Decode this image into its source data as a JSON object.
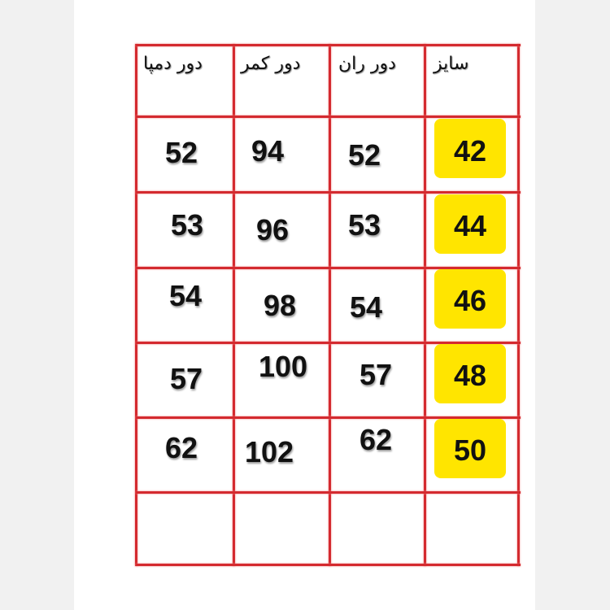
{
  "headers": {
    "size": "سایز",
    "thigh": "دور ران",
    "waist": "دور کمر",
    "hem": "دور دمپا"
  },
  "highlight_color": "#ffe500",
  "grid_color": "#d42a2f",
  "rows": [
    {
      "size": "42",
      "thigh": "52",
      "waist": "94",
      "hem": "52"
    },
    {
      "size": "44",
      "thigh": "53",
      "waist": "96",
      "hem": "53"
    },
    {
      "size": "46",
      "thigh": "54",
      "waist": "98",
      "hem": "54"
    },
    {
      "size": "48",
      "thigh": "57",
      "waist": "100",
      "hem": "57"
    },
    {
      "size": "50",
      "thigh": "62",
      "waist": "102",
      "hem": "62"
    }
  ]
}
